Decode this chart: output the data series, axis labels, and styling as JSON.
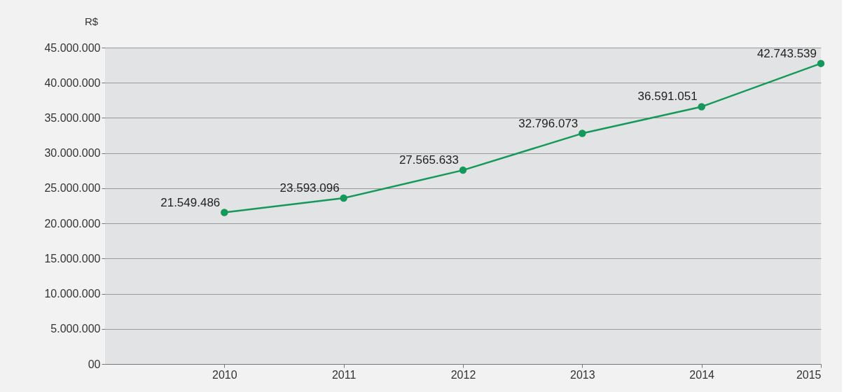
{
  "chart_data": {
    "type": "line",
    "ylabel": "R$",
    "x": [
      2010,
      2011,
      2012,
      2013,
      2014,
      2015
    ],
    "series": [
      {
        "color": "#14995a",
        "values": [
          21549486,
          23593096,
          27565633,
          32796073,
          36591051,
          42743539
        ],
        "value_labels": [
          "21.549.486",
          "23.593.096",
          "27.565.633",
          "32.796.073",
          "36.591.051",
          "42.743.539"
        ]
      }
    ],
    "xlim": [
      2009,
      2015
    ],
    "xticks": [
      2010,
      2011,
      2012,
      2013,
      2014,
      2015
    ],
    "ylim": [
      0,
      45000000
    ],
    "yticks": [
      {
        "value": 0,
        "label": "00"
      },
      {
        "value": 5000000,
        "label": "5.000.000"
      },
      {
        "value": 10000000,
        "label": "10.000.000"
      },
      {
        "value": 15000000,
        "label": "15.000.000"
      },
      {
        "value": 20000000,
        "label": "20.000.000"
      },
      {
        "value": 25000000,
        "label": "25.000.000"
      },
      {
        "value": 30000000,
        "label": "30.000.000"
      },
      {
        "value": 35000000,
        "label": "35.000.000"
      },
      {
        "value": 40000000,
        "label": "40.000.000"
      },
      {
        "value": 45000000,
        "label": "45.000.000"
      }
    ],
    "grid": "y",
    "marker": "circle",
    "line_style": "solid"
  }
}
